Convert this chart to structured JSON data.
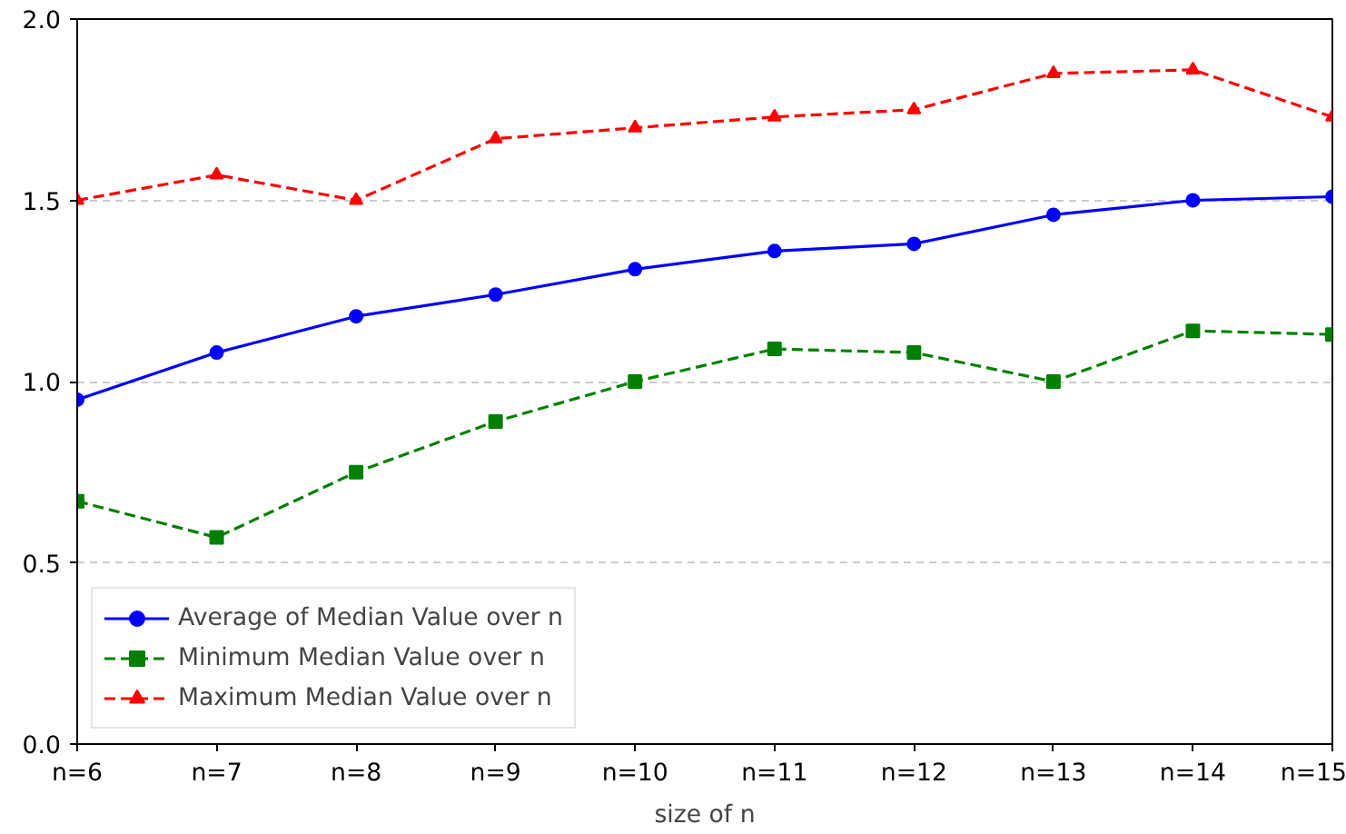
{
  "chart_data": {
    "type": "line",
    "xlabel": "size of n",
    "categories": [
      "n=6",
      "n=7",
      "n=8",
      "n=9",
      "n=10",
      "n=11",
      "n=12",
      "n=13",
      "n=14",
      "n=15"
    ],
    "series": [
      {
        "name": "Average of Median Value over n",
        "color": "#0000ff",
        "marker": "circle",
        "line_style": "solid",
        "values": [
          0.95,
          1.08,
          1.18,
          1.24,
          1.31,
          1.36,
          1.38,
          1.46,
          1.5,
          1.51
        ]
      },
      {
        "name": "Minimum Median Value over n",
        "color": "#008000",
        "marker": "square",
        "line_style": "dashed",
        "values": [
          0.67,
          0.57,
          0.75,
          0.89,
          1.0,
          1.09,
          1.08,
          1.0,
          1.14,
          1.13
        ]
      },
      {
        "name": "Maximum Median Value over n",
        "color": "#ff0000",
        "marker": "triangle",
        "line_style": "dashed",
        "values": [
          1.5,
          1.57,
          1.5,
          1.67,
          1.7,
          1.73,
          1.75,
          1.85,
          1.86,
          1.73
        ]
      }
    ],
    "ylim": [
      0,
      2.0
    ],
    "yticks": [
      {
        "value": 0,
        "label": "0.0"
      },
      {
        "value": 0.5,
        "label": "0.5"
      },
      {
        "value": 1.0,
        "label": "1.0"
      },
      {
        "value": 1.5,
        "label": "1.5"
      },
      {
        "value": 2.0,
        "label": "2.0"
      }
    ],
    "grid": "y",
    "legend": "bottom left"
  }
}
